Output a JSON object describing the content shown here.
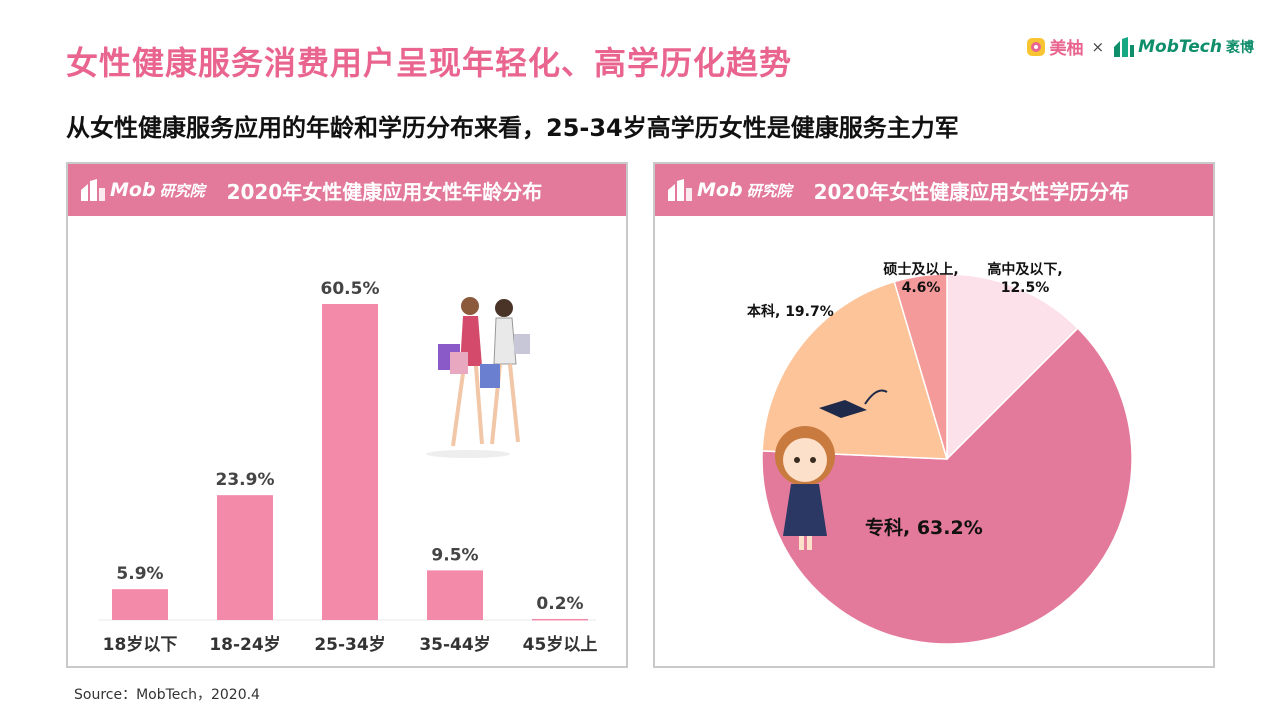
{
  "header": {
    "title": "女性健康服务消费用户呈现年轻化、高学历化趋势",
    "subtitle": "从女性健康服务应用的年龄和学历分布来看，25-34岁高学历女性是健康服务主力军",
    "logo_meiyou": "美柚",
    "logo_separator": "×",
    "logo_mobtech": "MobTech",
    "logo_mobtech_cn": "袤博"
  },
  "left_panel": {
    "badge": "Mob",
    "badge_cn": "研究院",
    "title": "2020年女性健康应用女性年龄分布"
  },
  "right_panel": {
    "badge": "Mob",
    "badge_cn": "研究院",
    "title": "2020年女性健康应用女性学历分布"
  },
  "source": "Source：MobTech，2020.4",
  "colors": {
    "accent": "#e9658f",
    "header_band": "#e37a9c",
    "bar": "#f48aa9"
  },
  "chart_data": [
    {
      "type": "bar",
      "title": "2020年女性健康应用女性年龄分布",
      "categories": [
        "18岁以下",
        "18-24岁",
        "25-34岁",
        "35-44岁",
        "45岁以上"
      ],
      "values": [
        5.9,
        23.9,
        60.5,
        9.5,
        0.2
      ],
      "value_labels": [
        "5.9%",
        "23.9%",
        "60.5%",
        "9.5%",
        "0.2%"
      ],
      "ylim": [
        0,
        65
      ],
      "grid": false,
      "color": "#f48aa9"
    },
    {
      "type": "pie",
      "title": "2020年女性健康应用女性学历分布",
      "slices": [
        {
          "label": "高中及以下",
          "value": 12.5,
          "text": "12.5%",
          "color": "#fce0ea"
        },
        {
          "label": "专科",
          "value": 63.2,
          "text": "63.2%",
          "color": "#e47a9b"
        },
        {
          "label": "本科",
          "value": 19.7,
          "text": "19.7%",
          "color": "#fcc498"
        },
        {
          "label": "硕士及以上",
          "value": 4.6,
          "text": "4.6%",
          "color": "#f59a9b"
        }
      ]
    }
  ]
}
